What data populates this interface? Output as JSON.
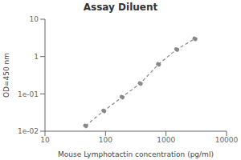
{
  "chart_data": {
    "type": "line",
    "title": "Assay Diluent",
    "x_label": "Mouse Lymphotactin concentration (pg/ml)",
    "y_label": "OD=450 nm",
    "x": [
      46.875,
      93.75,
      187.5,
      375,
      750,
      1500,
      3000
    ],
    "series": [
      {
        "name": "OD",
        "color": "#888888",
        "values": [
          0.014,
          0.035,
          0.082,
          0.19,
          0.62,
          1.55,
          3.0
        ],
        "line_style": "dashed",
        "marker": "o"
      }
    ],
    "xlim": [
      10,
      10000
    ],
    "ylim": [
      0.01,
      10
    ],
    "xticks": [
      10,
      100,
      1000,
      10000
    ],
    "yticks": [
      {
        "value": 0.01,
        "label": "1e-02"
      },
      {
        "value": 0.1,
        "label": "1e-01"
      },
      1,
      10
    ],
    "log": true,
    "grid": false
  }
}
